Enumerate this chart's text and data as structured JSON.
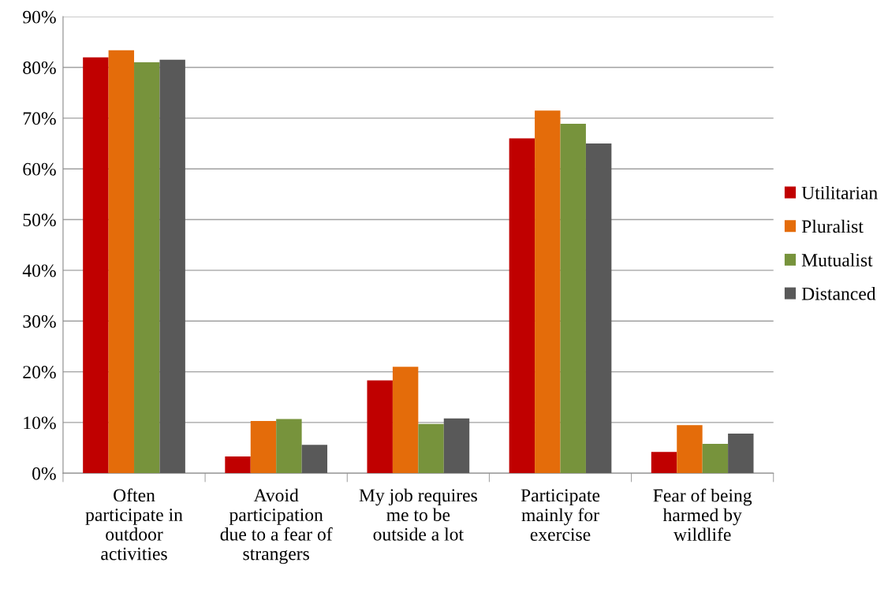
{
  "chart_data": {
    "type": "bar",
    "categories": [
      "Often\nparticipate in\noutdoor\nactivities",
      "Avoid\nparticipation\ndue to a fear of\nstrangers",
      "My job requires\nme to be\noutside a lot",
      "Participate\nmainly for\nexercise",
      "Fear of being\nharmed by\nwildlife"
    ],
    "series": [
      {
        "name": "Utilitarian",
        "color": "#c00000",
        "values": [
          82,
          3.3,
          18.3,
          66,
          4.2
        ]
      },
      {
        "name": "Pluralist",
        "color": "#e46c0a",
        "values": [
          83.4,
          10.3,
          21,
          71.5,
          9.5
        ]
      },
      {
        "name": "Mutualist",
        "color": "#77933c",
        "values": [
          81,
          10.7,
          9.7,
          68.9,
          5.8
        ]
      },
      {
        "name": "Distanced",
        "color": "#595959",
        "values": [
          81.5,
          5.6,
          10.8,
          65,
          7.8
        ]
      }
    ],
    "ylim": [
      0,
      90
    ],
    "yticks": [
      {
        "value": 0,
        "label": "0%"
      },
      {
        "value": 10,
        "label": "10%"
      },
      {
        "value": 20,
        "label": "20%"
      },
      {
        "value": 30,
        "label": "30%"
      },
      {
        "value": 40,
        "label": "40%"
      },
      {
        "value": 50,
        "label": "50%"
      },
      {
        "value": 60,
        "label": "60%"
      },
      {
        "value": 70,
        "label": "70%"
      },
      {
        "value": 80,
        "label": "80%"
      },
      {
        "value": 90,
        "label": "90%"
      }
    ],
    "grid": "y",
    "legend": "right"
  }
}
